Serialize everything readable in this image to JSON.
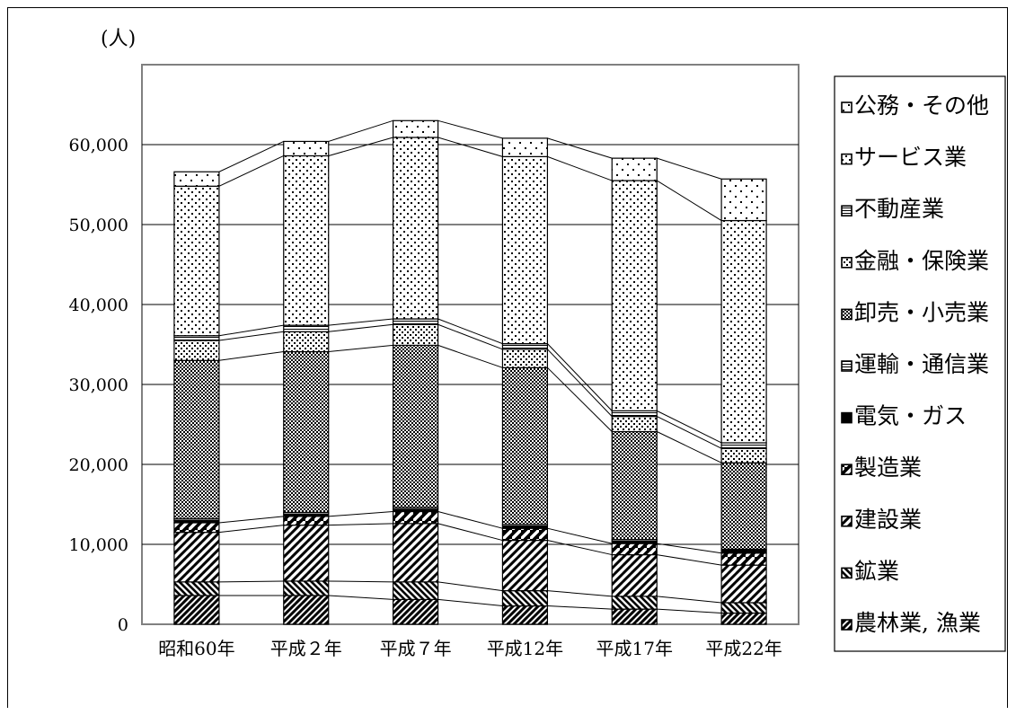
{
  "chart_data": {
    "type": "bar",
    "stacked": true,
    "unit_label": "(人)",
    "categories": [
      "昭和60年",
      "平成２年",
      "平成７年",
      "平成12年",
      "平成17年",
      "平成22年"
    ],
    "ylim": [
      0,
      70000
    ],
    "yticks": [
      0,
      10000,
      20000,
      30000,
      40000,
      50000,
      60000
    ],
    "ytick_labels": [
      "0",
      "10,000",
      "20,000",
      "30,000",
      "40,000",
      "50,000",
      "60,000"
    ],
    "grid": true,
    "legend_position": "right",
    "series": [
      {
        "name": "農林業, 漁業",
        "pattern": "diag-left-dense",
        "values": [
          3600,
          3600,
          3100,
          2300,
          1900,
          1400
        ]
      },
      {
        "name": "鉱業",
        "pattern": "diag-right-dense",
        "values": [
          1700,
          1800,
          2200,
          1900,
          1600,
          1300
        ]
      },
      {
        "name": "建設業",
        "pattern": "diag-left",
        "values": [
          6200,
          7000,
          7300,
          6300,
          5200,
          4700
        ]
      },
      {
        "name": "製造業",
        "pattern": "diag-right-bold",
        "values": [
          1200,
          1100,
          1500,
          1500,
          1400,
          1500
        ]
      },
      {
        "name": "電気・ガス",
        "pattern": "solid",
        "values": [
          300,
          300,
          300,
          300,
          300,
          300
        ]
      },
      {
        "name": "運輸・通信業",
        "pattern": "hline",
        "values": [
          200,
          200,
          200,
          200,
          200,
          200
        ]
      },
      {
        "name": "卸売・小売業",
        "pattern": "checker",
        "values": [
          19800,
          20100,
          20300,
          19600,
          13500,
          10800
        ]
      },
      {
        "name": "金融・保険業",
        "pattern": "check-light",
        "values": [
          2500,
          2500,
          2600,
          2300,
          1900,
          1800
        ]
      },
      {
        "name": "不動産業",
        "pattern": "hline",
        "values": [
          600,
          800,
          700,
          700,
          700,
          700
        ]
      },
      {
        "name": "サービス業",
        "pattern": "dots",
        "values": [
          18700,
          21200,
          22700,
          23400,
          28800,
          27800
        ]
      },
      {
        "name": "公務・その他",
        "pattern": "dots-sparse",
        "values": [
          1800,
          1800,
          2100,
          2300,
          2800,
          5200
        ]
      }
    ]
  }
}
